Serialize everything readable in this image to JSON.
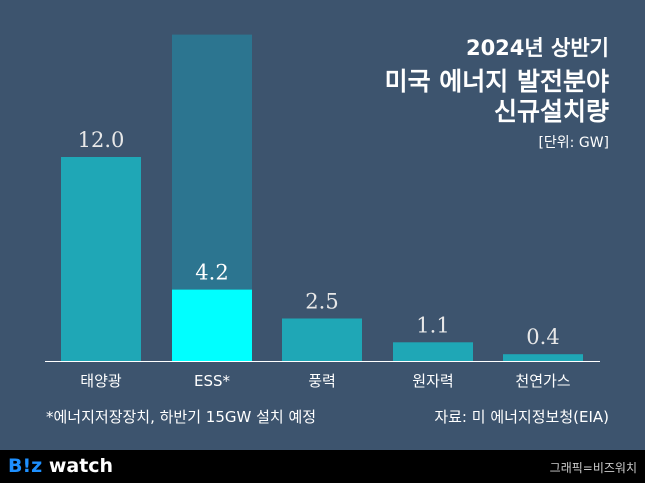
{
  "header": {
    "line1": "2024년 상반기",
    "line2": "미국 에너지 발전분야",
    "line3": "신규설치량",
    "unit": "[단위: GW]"
  },
  "chart_data": {
    "type": "bar",
    "title": "2024년 상반기 미국 에너지 발전분야 신규설치량",
    "unit": "GW",
    "categories": [
      "태양광",
      "ESS*",
      "풍력",
      "원자력",
      "천연가스"
    ],
    "values": [
      12.0,
      4.2,
      2.5,
      1.1,
      0.4
    ],
    "value_labels": [
      "12.0",
      "4.2",
      "2.5",
      "1.1",
      "0.4"
    ],
    "planned_extra": {
      "category": "ESS*",
      "value": 15
    },
    "ylim": [
      0,
      20
    ],
    "grid": false,
    "colors": {
      "bar": "#1fa7b6",
      "highlight": "#00ffff",
      "planned": "#2c7590",
      "background": "#3d546e"
    }
  },
  "footnote": "*에너지저장장치, 하반기 15GW 설치 예정",
  "source": "자료: 미 에너지정보청(EIA)",
  "footer": {
    "logo_b": "B!z",
    "logo_rest": " watch",
    "credit": "그래픽=비즈워치"
  }
}
